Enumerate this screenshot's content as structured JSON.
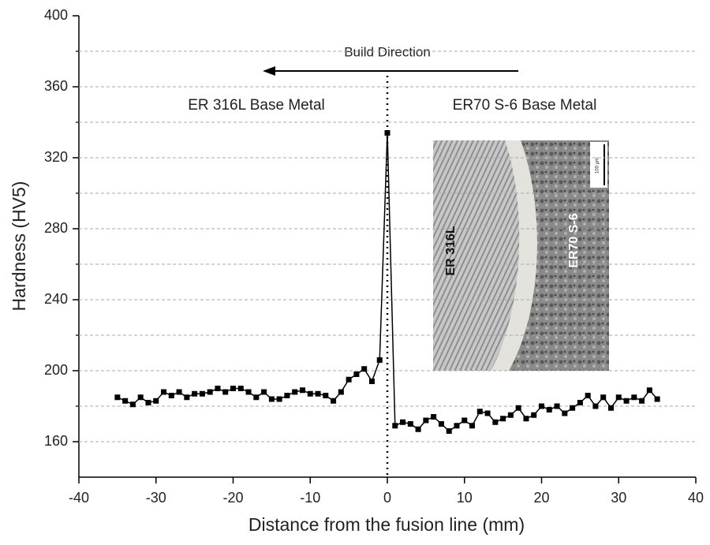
{
  "chart_data": {
    "type": "line",
    "x_label": "Distance from the fusion line (mm)",
    "y_label": "Hardness (HV5)",
    "annotations": [
      "Build Direction",
      "ER 316L Base Metal",
      "ER70 S-6 Base Metal"
    ],
    "inset": {
      "labels": [
        "ER 316L",
        "ER70 S-6"
      ],
      "scale_bar": "100 µm"
    },
    "xlim": [
      -40,
      40
    ],
    "xticks": [
      -40,
      -30,
      -20,
      -10,
      0,
      10,
      20,
      30,
      40
    ],
    "ylim": [
      140,
      400
    ],
    "yticks": [
      160,
      200,
      240,
      280,
      320,
      360,
      400
    ],
    "minor_yticks": [
      180,
      220,
      260,
      300,
      340,
      380
    ],
    "grid": true,
    "series": [
      {
        "color": "#000000",
        "x": [
          -35,
          -34,
          -33,
          -32,
          -31,
          -30,
          -29,
          -28,
          -27,
          -26,
          -25,
          -24,
          -23,
          -22,
          -21,
          -20,
          -19,
          -18,
          -17,
          -16,
          -15,
          -14,
          -13,
          -12,
          -11,
          -10,
          -9,
          -8,
          -7,
          -6,
          -5,
          -4,
          -3,
          -2,
          -1,
          0,
          1,
          2,
          3,
          4,
          5,
          6,
          7,
          8,
          9,
          10,
          11,
          12,
          13,
          14,
          15,
          16,
          17,
          18,
          19,
          20,
          21,
          22,
          23,
          24,
          25,
          26,
          27,
          28,
          29,
          30,
          31,
          32,
          33,
          34,
          35
        ],
        "values": [
          185,
          183,
          181,
          185,
          182,
          183,
          188,
          186,
          188,
          185,
          187,
          187,
          188,
          190,
          188,
          190,
          190,
          188,
          185,
          188,
          184,
          184,
          186,
          188,
          189,
          187,
          187,
          186,
          183,
          188,
          195,
          198,
          201,
          194,
          206,
          334,
          169,
          171,
          170,
          167,
          172,
          174,
          170,
          166,
          169,
          172,
          169,
          177,
          176,
          171,
          173,
          175,
          179,
          173,
          175,
          180,
          178,
          180,
          176,
          179,
          182,
          186,
          180,
          185,
          179,
          185,
          183,
          185,
          183,
          189,
          184
        ]
      }
    ]
  }
}
